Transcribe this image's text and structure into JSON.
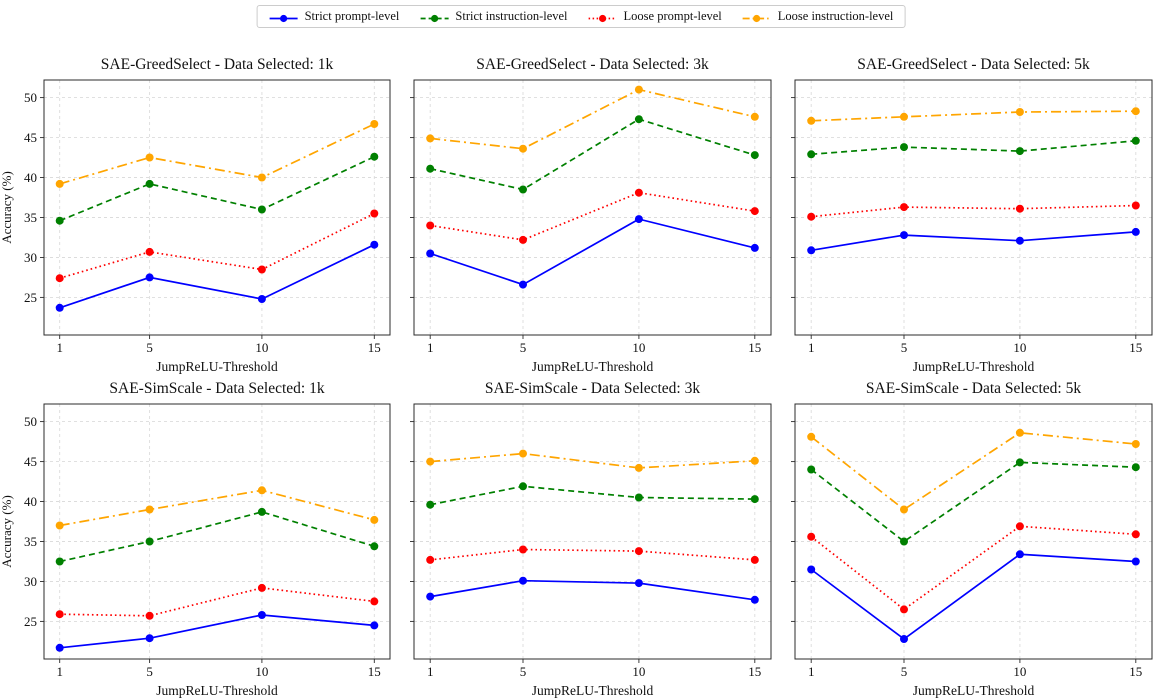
{
  "chart_data": {
    "type": "line",
    "figure_layout": "2 rows x 3 columns, shared legend top-center",
    "x": [
      1,
      5,
      10,
      15
    ],
    "xlabel": "JumpReLU-Threshold",
    "ylabel": "Accuracy (%)",
    "yticks": [
      25,
      30,
      35,
      40,
      45,
      50
    ],
    "ylim": [
      20.3,
      52.2
    ],
    "xlim": [
      0.3,
      15.7
    ],
    "grid_on": true,
    "legend_position": "top-center",
    "colors": {
      "strict_prompt": "#0000ff",
      "strict_instruction": "#008000",
      "loose_prompt": "#ff0000",
      "loose_instruction": "#ffa500",
      "gridline": "#dcdcdc",
      "spine": "#2b2b2b",
      "text": "#111111"
    },
    "series_defs": [
      {
        "name": "Strict prompt-level",
        "color": "#0000ff",
        "dash": "solid"
      },
      {
        "name": "Strict instruction-level",
        "color": "#008000",
        "dash": "dashed"
      },
      {
        "name": "Loose prompt-level",
        "color": "#ff0000",
        "dash": "dotted"
      },
      {
        "name": "Loose instruction-level",
        "color": "#ffa500",
        "dash": "dashdot"
      }
    ],
    "subplots": [
      {
        "title": "SAE-GreedSelect - Data Selected: 1k",
        "values": [
          [
            23.7,
            27.5,
            24.8,
            31.6
          ],
          [
            34.6,
            39.2,
            36.0,
            42.6
          ],
          [
            27.4,
            30.7,
            28.5,
            35.5
          ],
          [
            39.2,
            42.5,
            40.0,
            46.7
          ]
        ]
      },
      {
        "title": "SAE-GreedSelect - Data Selected: 3k",
        "values": [
          [
            30.5,
            26.6,
            34.8,
            31.2
          ],
          [
            41.1,
            38.5,
            47.3,
            42.8
          ],
          [
            34.0,
            32.2,
            38.1,
            35.8
          ],
          [
            44.9,
            43.6,
            51.0,
            47.6
          ]
        ]
      },
      {
        "title": "SAE-GreedSelect - Data Selected: 5k",
        "values": [
          [
            30.9,
            32.8,
            32.1,
            33.2
          ],
          [
            42.9,
            43.8,
            43.3,
            44.6
          ],
          [
            35.1,
            36.3,
            36.1,
            36.5
          ],
          [
            47.1,
            47.6,
            48.2,
            48.3
          ]
        ]
      },
      {
        "title": "SAE-SimScale - Data Selected: 1k",
        "values": [
          [
            21.7,
            22.9,
            25.8,
            24.5
          ],
          [
            32.5,
            35.0,
            38.7,
            34.4
          ],
          [
            25.9,
            25.7,
            29.2,
            27.5
          ],
          [
            37.0,
            39.0,
            41.4,
            37.7
          ]
        ]
      },
      {
        "title": "SAE-SimScale - Data Selected: 3k",
        "values": [
          [
            28.1,
            30.1,
            29.8,
            27.7
          ],
          [
            39.6,
            41.9,
            40.5,
            40.3
          ],
          [
            32.7,
            34.0,
            33.8,
            32.7
          ],
          [
            45.0,
            46.0,
            44.2,
            45.1
          ]
        ]
      },
      {
        "title": "SAE-SimScale - Data Selected: 5k",
        "values": [
          [
            31.5,
            22.8,
            33.4,
            32.5
          ],
          [
            44.0,
            35.0,
            44.9,
            44.3
          ],
          [
            35.6,
            26.5,
            36.9,
            35.9
          ],
          [
            48.1,
            39.0,
            48.6,
            47.2
          ]
        ]
      }
    ]
  }
}
